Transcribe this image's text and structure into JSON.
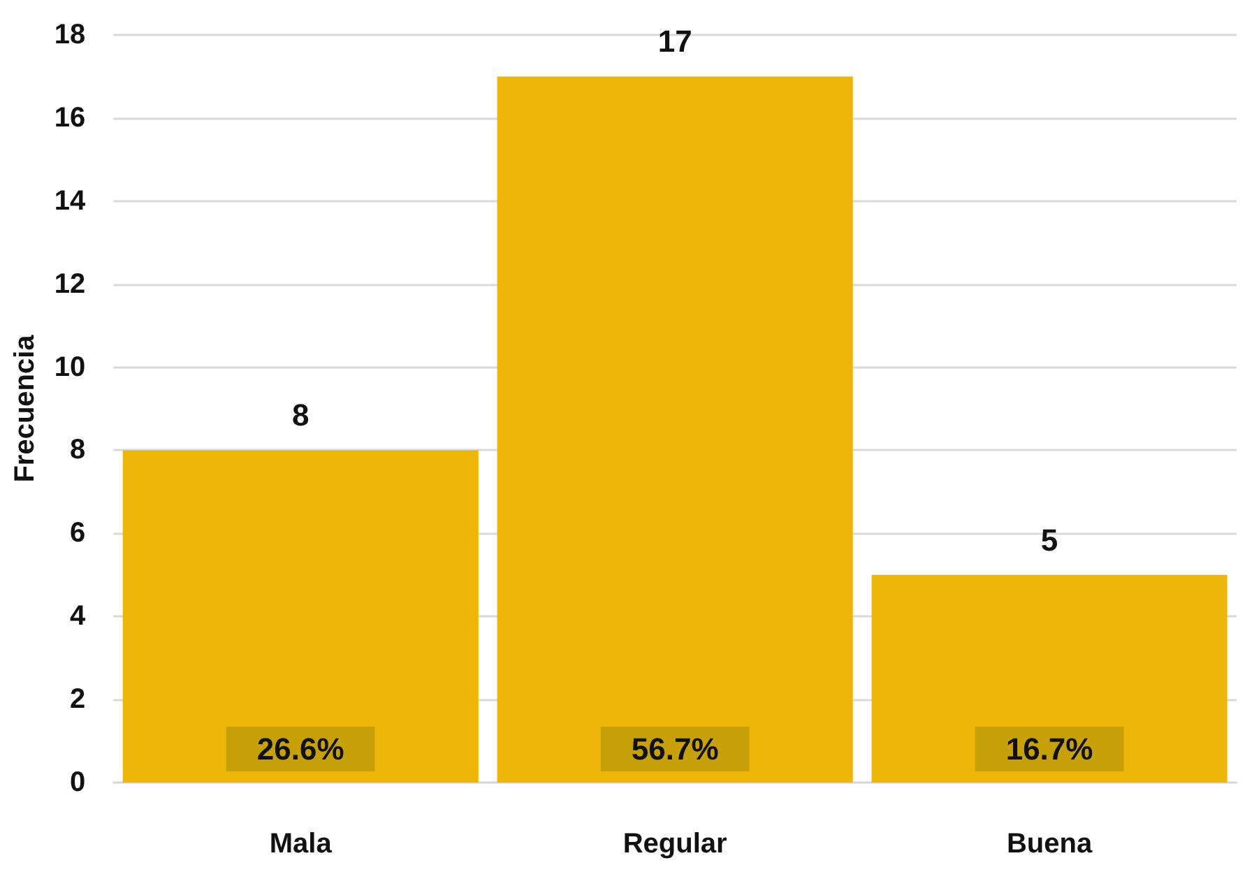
{
  "chart_data": {
    "type": "bar",
    "categories": [
      "Mala",
      "Regular",
      "Buena"
    ],
    "values": [
      8,
      17,
      5
    ],
    "color": "#eeb509",
    "ylabel": "Frecuencia",
    "ylim": [
      0,
      18
    ],
    "yticks": [
      0,
      2,
      4,
      6,
      8,
      10,
      12,
      14,
      16,
      18
    ],
    "grid": "y",
    "data_labels": true,
    "annotations": [
      "26.6%",
      "56.7%",
      "16.7%"
    ]
  }
}
